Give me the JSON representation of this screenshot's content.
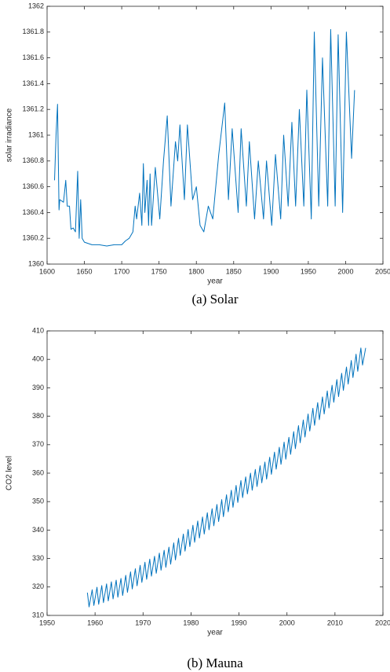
{
  "chart_data": [
    {
      "type": "line",
      "caption": "(a) Solar",
      "xlabel": "year",
      "ylabel": "solar irradiance",
      "color": "#0072bd",
      "xlim": [
        1600,
        2050
      ],
      "xticks": [
        1600,
        1650,
        1700,
        1750,
        1800,
        1850,
        1900,
        1950,
        2000,
        2050
      ],
      "ylim": [
        1360,
        1362
      ],
      "yticks": [
        1360,
        1360.2,
        1360.4,
        1360.6,
        1360.8,
        1361,
        1361.2,
        1361.4,
        1361.6,
        1361.8,
        1362
      ],
      "x": [
        1610,
        1612,
        1614,
        1616,
        1617,
        1622,
        1625,
        1627,
        1630,
        1632,
        1635,
        1638,
        1641,
        1643,
        1645,
        1647,
        1650,
        1655,
        1660,
        1670,
        1680,
        1690,
        1700,
        1705,
        1710,
        1715,
        1718,
        1720,
        1724,
        1727,
        1729,
        1731,
        1734,
        1736,
        1738,
        1740,
        1745,
        1751,
        1756,
        1761,
        1766,
        1772,
        1775,
        1778,
        1784,
        1788,
        1795,
        1800,
        1805,
        1810,
        1816,
        1822,
        1830,
        1838,
        1843,
        1848,
        1856,
        1860,
        1867,
        1871,
        1878,
        1883,
        1890,
        1894,
        1901,
        1906,
        1913,
        1917,
        1923,
        1928,
        1933,
        1938,
        1944,
        1948,
        1954,
        1958,
        1964,
        1969,
        1976,
        1980,
        1986,
        1990,
        1996,
        2001,
        2008,
        2012
      ],
      "values": [
        1360.65,
        1361.0,
        1361.24,
        1360.42,
        1360.5,
        1360.48,
        1360.65,
        1360.45,
        1360.45,
        1360.27,
        1360.28,
        1360.25,
        1360.72,
        1360.2,
        1360.5,
        1360.2,
        1360.17,
        1360.16,
        1360.15,
        1360.15,
        1360.14,
        1360.15,
        1360.15,
        1360.18,
        1360.2,
        1360.25,
        1360.45,
        1360.35,
        1360.55,
        1360.3,
        1360.78,
        1360.4,
        1360.65,
        1360.3,
        1360.7,
        1360.3,
        1360.75,
        1360.35,
        1360.8,
        1361.15,
        1360.45,
        1360.95,
        1360.8,
        1361.08,
        1360.5,
        1361.08,
        1360.5,
        1360.6,
        1360.3,
        1360.25,
        1360.45,
        1360.35,
        1360.85,
        1361.25,
        1360.5,
        1361.05,
        1360.4,
        1361.05,
        1360.45,
        1360.95,
        1360.35,
        1360.8,
        1360.35,
        1360.8,
        1360.3,
        1360.85,
        1360.35,
        1361.0,
        1360.45,
        1361.1,
        1360.45,
        1361.2,
        1360.45,
        1361.35,
        1360.35,
        1361.8,
        1360.45,
        1361.6,
        1360.45,
        1361.82,
        1360.45,
        1361.78,
        1360.4,
        1361.8,
        1360.82,
        1361.35
      ]
    },
    {
      "type": "line",
      "caption": "(b) Mauna",
      "xlabel": "year",
      "ylabel": "CO2 level",
      "color": "#0072bd",
      "xlim": [
        1950,
        2020
      ],
      "xticks": [
        1950,
        1960,
        1970,
        1980,
        1990,
        2000,
        2010,
        2020
      ],
      "ylim": [
        310,
        410
      ],
      "yticks": [
        310,
        320,
        330,
        340,
        350,
        360,
        370,
        380,
        390,
        400,
        410
      ],
      "x": [
        1958.4,
        1958.75,
        1959.4,
        1959.75,
        1960.4,
        1960.75,
        1961.4,
        1961.75,
        1962.4,
        1962.75,
        1963.4,
        1963.75,
        1964.4,
        1964.75,
        1965.4,
        1965.75,
        1966.4,
        1966.75,
        1967.4,
        1967.75,
        1968.4,
        1968.75,
        1969.4,
        1969.75,
        1970.4,
        1970.75,
        1971.4,
        1971.75,
        1972.4,
        1972.75,
        1973.4,
        1973.75,
        1974.4,
        1974.75,
        1975.4,
        1975.75,
        1976.4,
        1976.75,
        1977.4,
        1977.75,
        1978.4,
        1978.75,
        1979.4,
        1979.75,
        1980.4,
        1980.75,
        1981.4,
        1981.75,
        1982.4,
        1982.75,
        1983.4,
        1983.75,
        1984.4,
        1984.75,
        1985.4,
        1985.75,
        1986.4,
        1986.75,
        1987.4,
        1987.75,
        1988.4,
        1988.75,
        1989.4,
        1989.75,
        1990.4,
        1990.75,
        1991.4,
        1991.75,
        1992.4,
        1992.75,
        1993.4,
        1993.75,
        1994.4,
        1994.75,
        1995.4,
        1995.75,
        1996.4,
        1996.75,
        1997.4,
        1997.75,
        1998.4,
        1998.75,
        1999.4,
        1999.75,
        2000.4,
        2000.75,
        2001.4,
        2001.75,
        2002.4,
        2002.75,
        2003.4,
        2003.75,
        2004.4,
        2004.75,
        2005.4,
        2005.75,
        2006.4,
        2006.75,
        2007.4,
        2007.75,
        2008.4,
        2008.75,
        2009.4,
        2009.75,
        2010.4,
        2010.75,
        2011.4,
        2011.75,
        2012.4,
        2012.75,
        2013.4,
        2013.75,
        2014.4,
        2014.75,
        2015.4,
        2015.75,
        2016.4
      ],
      "values": [
        318.0,
        313.0,
        319.0,
        313.5,
        319.9,
        313.9,
        320.5,
        314.5,
        321.1,
        315.1,
        321.8,
        315.8,
        322.4,
        316.4,
        323.0,
        317.0,
        324.1,
        318.1,
        325.3,
        319.3,
        326.4,
        320.4,
        327.6,
        321.6,
        328.7,
        322.7,
        329.8,
        323.8,
        330.8,
        324.8,
        331.9,
        325.9,
        332.9,
        326.9,
        334.0,
        328.0,
        335.5,
        329.5,
        337.1,
        331.1,
        338.6,
        332.6,
        340.2,
        334.2,
        341.7,
        335.7,
        343.2,
        337.2,
        344.6,
        338.6,
        346.1,
        340.1,
        347.5,
        341.5,
        349.0,
        343.0,
        350.7,
        344.7,
        352.4,
        346.4,
        354.0,
        348.0,
        355.7,
        349.7,
        357.4,
        351.4,
        358.7,
        352.7,
        360.0,
        354.0,
        361.3,
        355.3,
        362.6,
        356.6,
        363.9,
        357.9,
        365.6,
        359.6,
        367.4,
        361.4,
        369.1,
        363.1,
        370.9,
        364.9,
        372.6,
        366.6,
        374.6,
        368.6,
        376.7,
        370.7,
        378.7,
        372.7,
        380.8,
        374.8,
        382.8,
        376.8,
        384.8,
        378.8,
        386.8,
        380.8,
        388.9,
        382.9,
        390.9,
        384.9,
        392.9,
        386.9,
        395.1,
        389.1,
        397.3,
        391.3,
        399.6,
        393.6,
        401.8,
        395.8,
        404.0,
        398.0,
        404.0
      ]
    }
  ]
}
